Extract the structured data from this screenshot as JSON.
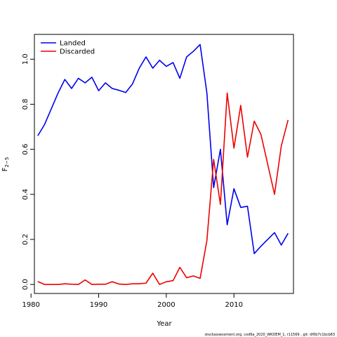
{
  "chart_data": {
    "type": "line",
    "title": "",
    "xlabel": "Year",
    "ylabel": "F",
    "ylabel_subscript": "2−5",
    "xlim": [
      1980.5,
      2018.8
    ],
    "ylim": [
      -0.04,
      1.11
    ],
    "x_ticks": [
      1980,
      1990,
      2000,
      2010
    ],
    "x_tick_labels": [
      "1980",
      "1990",
      "2000",
      "2010"
    ],
    "y_ticks": [
      0.0,
      0.2,
      0.4,
      0.6,
      0.8,
      1.0
    ],
    "y_tick_labels": [
      "0.0",
      "0.2",
      "0.4",
      "0.6",
      "0.8",
      "1.0"
    ],
    "grid": false,
    "legend_position": "top-left",
    "series": [
      {
        "name": "Landed",
        "color": "#0000ee",
        "x": [
          1981,
          1982,
          1983,
          1984,
          1985,
          1986,
          1987,
          1988,
          1989,
          1990,
          1991,
          1992,
          1993,
          1994,
          1995,
          1996,
          1997,
          1998,
          1999,
          2000,
          2001,
          2002,
          2003,
          2004,
          2005,
          2006,
          2007,
          2008,
          2009,
          2010,
          2011,
          2012,
          2013,
          2014,
          2016,
          2017,
          2018
        ],
        "values": [
          0.66,
          0.71,
          0.78,
          0.85,
          0.91,
          0.87,
          0.915,
          0.895,
          0.92,
          0.86,
          0.895,
          0.87,
          0.862,
          0.852,
          0.89,
          0.96,
          1.01,
          0.96,
          0.995,
          0.968,
          0.985,
          0.915,
          1.01,
          1.035,
          1.065,
          0.85,
          0.43,
          0.6,
          0.265,
          0.425,
          0.342,
          0.347,
          0.137,
          0.17,
          0.23,
          0.175,
          0.227
        ]
      },
      {
        "name": "Discarded",
        "color": "#ee0000",
        "x": [
          1981,
          1982,
          1983,
          1984,
          1985,
          1986,
          1987,
          1988,
          1989,
          1990,
          1991,
          1992,
          1993,
          1994,
          1995,
          1996,
          1997,
          1998,
          1999,
          2000,
          2001,
          2002,
          2003,
          2004,
          2005,
          2006,
          2007,
          2008,
          2009,
          2010,
          2011,
          2012,
          2013,
          2014,
          2016,
          2017,
          2018
        ],
        "values": [
          0.013,
          0.0,
          0.0,
          0.0,
          0.003,
          0.001,
          0.0,
          0.02,
          0.0,
          0.001,
          0.001,
          0.012,
          0.002,
          0.0,
          0.003,
          0.003,
          0.006,
          0.05,
          0.0,
          0.012,
          0.017,
          0.076,
          0.03,
          0.038,
          0.027,
          0.195,
          0.555,
          0.355,
          0.85,
          0.605,
          0.795,
          0.565,
          0.725,
          0.665,
          0.4,
          0.615,
          0.73
        ]
      }
    ]
  },
  "footer_text": "stockassessment.org, cod6a_2020_WKDEM_1, r11569 , git: df0b7c1bcb83"
}
